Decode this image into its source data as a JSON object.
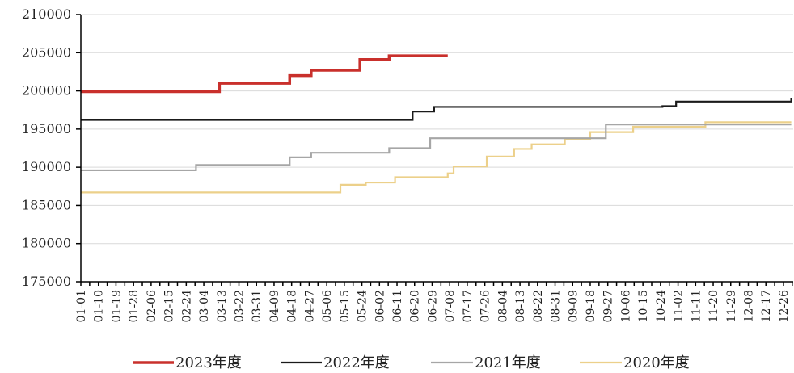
{
  "chart_data": {
    "type": "line",
    "title": "",
    "xlabel": "",
    "ylabel": "",
    "ylim": [
      175000,
      210000
    ],
    "yticks": [
      175000,
      180000,
      185000,
      190000,
      195000,
      200000,
      205000,
      210000
    ],
    "grid": "horizontal",
    "legend": "bottom",
    "x_ticks": [
      "01-01",
      "01-10",
      "01-19",
      "01-28",
      "02-06",
      "02-15",
      "02-24",
      "03-04",
      "03-13",
      "03-22",
      "03-31",
      "04-09",
      "04-18",
      "04-27",
      "05-06",
      "05-15",
      "05-24",
      "06-02",
      "06-11",
      "06-20",
      "06-29",
      "07-08",
      "07-17",
      "07-26",
      "08-04",
      "08-13",
      "08-22",
      "08-31",
      "09-09",
      "09-18",
      "09-27",
      "10-06",
      "10-15",
      "10-24",
      "11-02",
      "11-11",
      "11-20",
      "11-29",
      "12-08",
      "12-17",
      "12-26"
    ],
    "series": [
      {
        "name": "2023年度",
        "color": "#c9302c",
        "step": true,
        "points": [
          [
            "01-01",
            199900
          ],
          [
            "03-13",
            201000
          ],
          [
            "04-18",
            202000
          ],
          [
            "04-29",
            202700
          ],
          [
            "05-24",
            204100
          ],
          [
            "06-08",
            204600
          ],
          [
            "07-08",
            204600
          ]
        ]
      },
      {
        "name": "2022年度",
        "color": "#1a1a1a",
        "step": true,
        "points": [
          [
            "01-01",
            196200
          ],
          [
            "06-20",
            197300
          ],
          [
            "07-01",
            197900
          ],
          [
            "10-26",
            198000
          ],
          [
            "11-02",
            198600
          ],
          [
            "12-29",
            198600
          ],
          [
            "12-31",
            199000
          ]
        ]
      },
      {
        "name": "2021年度",
        "color": "#a6a6a6",
        "step": true,
        "points": [
          [
            "01-01",
            189600
          ],
          [
            "03-01",
            190300
          ],
          [
            "04-18",
            191300
          ],
          [
            "04-29",
            191900
          ],
          [
            "06-08",
            192500
          ],
          [
            "06-29",
            193800
          ],
          [
            "09-27",
            195600
          ],
          [
            "12-31",
            195600
          ]
        ]
      },
      {
        "name": "2020年度",
        "color": "#ecd08a",
        "step": true,
        "points": [
          [
            "01-01",
            186700
          ],
          [
            "05-14",
            187700
          ],
          [
            "05-27",
            188000
          ],
          [
            "06-11",
            188700
          ],
          [
            "07-08",
            189200
          ],
          [
            "07-11",
            190100
          ],
          [
            "07-28",
            191400
          ],
          [
            "08-11",
            192400
          ],
          [
            "08-20",
            193000
          ],
          [
            "09-06",
            193700
          ],
          [
            "09-19",
            194600
          ],
          [
            "10-11",
            195300
          ],
          [
            "11-17",
            195900
          ],
          [
            "12-31",
            195900
          ]
        ]
      }
    ]
  }
}
